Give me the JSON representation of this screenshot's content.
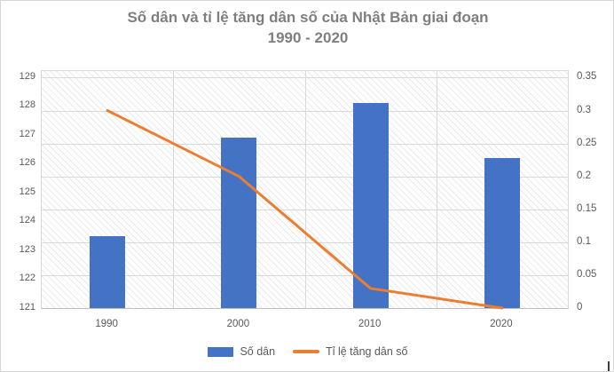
{
  "title": {
    "line1": "Số dân và tỉ lệ tăng dân số của Nhật Bản giai đoạn",
    "line2": "1990 - 2020",
    "color": "#7f7f7f"
  },
  "legend": {
    "items": [
      {
        "label": "Số dân",
        "swatch": "bar",
        "color": "#4472C4"
      },
      {
        "label": "Tỉ lệ tăng dân số",
        "swatch": "line",
        "color": "#ED7D31"
      }
    ],
    "position": "bottom"
  },
  "chart_data": {
    "type": "combo",
    "title": "Số dân và tỉ lệ tăng dân số của Nhật Bản giai đoạn 1990 - 2020",
    "categories": [
      "1990",
      "2000",
      "2010",
      "2020"
    ],
    "series": [
      {
        "name": "Số dân",
        "type": "bar",
        "axis": "left",
        "color": "#4472C4",
        "values": [
          123.5,
          126.9,
          128.1,
          126.2
        ]
      },
      {
        "name": "Tỉ lệ tăng dân số",
        "type": "line",
        "axis": "right",
        "color": "#ED7D31",
        "values": [
          0.3,
          0.2,
          0.03,
          0
        ]
      }
    ],
    "left_axis": {
      "tick_labels": [
        "121",
        "122",
        "123",
        "124",
        "125",
        "126",
        "127",
        "128",
        "129"
      ],
      "tick_values": [
        121,
        122,
        123,
        124,
        125,
        126,
        127,
        128,
        129
      ],
      "min": 121,
      "max": 129.2
    },
    "right_axis": {
      "tick_labels": [
        "0",
        "0.05",
        "0.1",
        "0.15",
        "0.2",
        "0.25",
        "0.3",
        "0.35"
      ],
      "tick_values": [
        0,
        0.05,
        0.1,
        0.15,
        0.2,
        0.25,
        0.3,
        0.35
      ],
      "min": 0,
      "max": 0.36
    },
    "grid": true,
    "plot_background": "diagonal-hatch",
    "legend_position": "bottom",
    "colors": {
      "bar": "#4472C4",
      "line": "#ED7D31",
      "gridline": "#d9d9d9",
      "axis_text": "#595959",
      "title_text": "#7f7f7f"
    }
  }
}
